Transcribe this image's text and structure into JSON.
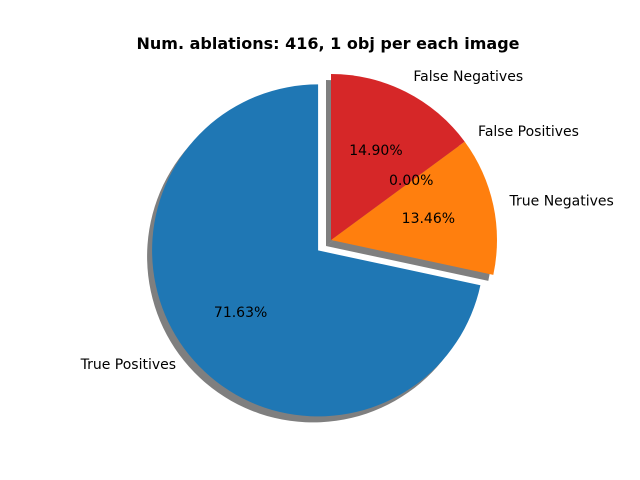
{
  "chart_data": {
    "type": "pie",
    "title": "Num. ablations: 416, 1 obj per each image",
    "slices": [
      {
        "label": "True Positives",
        "value": 71.63,
        "pct_label": "71.63%",
        "color": "#1f77b4",
        "exploded": true
      },
      {
        "label": "True Negatives",
        "value": 13.46,
        "pct_label": "13.46%",
        "color": "#ff7f0e",
        "exploded": false
      },
      {
        "label": "False Positives",
        "value": 0.0,
        "pct_label": "0.00%",
        "color": "#2ca02c",
        "exploded": false
      },
      {
        "label": "False Negatives",
        "value": 14.9,
        "pct_label": "14.90%",
        "color": "#d62728",
        "exploded": false
      }
    ],
    "start_angle_deg": 90,
    "shadow": true
  }
}
